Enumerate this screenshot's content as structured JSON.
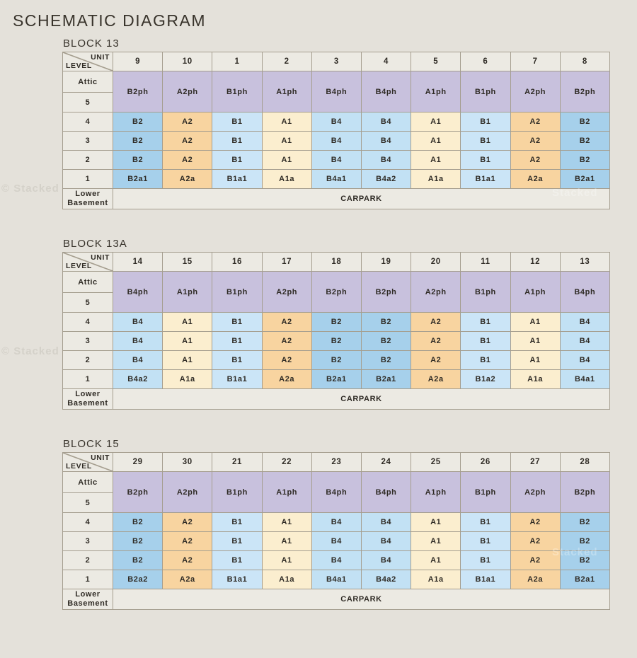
{
  "title": "SCHEMATIC DIAGRAM",
  "watermark_left": "© Stacked",
  "watermark_right": "Stacked",
  "corner": {
    "top": "UNIT",
    "bottom": "LEVEL"
  },
  "row_labels": {
    "attic": "Attic",
    "five": "5",
    "basement": "Lower\nBasement",
    "carpark": "CARPARK"
  },
  "unit_colors": {
    "PH": "#c8c1dd",
    "A1": "#fbeecf",
    "A2": "#f8d4a0",
    "B1": "#cbe5f7",
    "B2": "#a6d0eb",
    "B4": "#c2e1f4"
  },
  "border_color": "#a59e8f",
  "label_bg": "#eceae3",
  "page_bg": "#e4e1da",
  "blocks": [
    {
      "name": "BLOCK 13",
      "units": [
        "9",
        "10",
        "1",
        "2",
        "3",
        "4",
        "5",
        "6",
        "7",
        "8"
      ],
      "penthouse": [
        "B2ph",
        "A2ph",
        "B1ph",
        "A1ph",
        "B4ph",
        "B4ph",
        "A1ph",
        "B1ph",
        "A2ph",
        "B2ph"
      ],
      "levels": [
        {
          "label": "4",
          "cells": [
            "B2",
            "A2",
            "B1",
            "A1",
            "B4",
            "B4",
            "A1",
            "B1",
            "A2",
            "B2"
          ]
        },
        {
          "label": "3",
          "cells": [
            "B2",
            "A2",
            "B1",
            "A1",
            "B4",
            "B4",
            "A1",
            "B1",
            "A2",
            "B2"
          ]
        },
        {
          "label": "2",
          "cells": [
            "B2",
            "A2",
            "B1",
            "A1",
            "B4",
            "B4",
            "A1",
            "B1",
            "A2",
            "B2"
          ]
        },
        {
          "label": "1",
          "cells": [
            "B2a1",
            "A2a",
            "B1a1",
            "A1a",
            "B4a1",
            "B4a2",
            "A1a",
            "B1a1",
            "A2a",
            "B2a1"
          ]
        }
      ]
    },
    {
      "name": "BLOCK 13A",
      "units": [
        "14",
        "15",
        "16",
        "17",
        "18",
        "19",
        "20",
        "11",
        "12",
        "13"
      ],
      "penthouse": [
        "B4ph",
        "A1ph",
        "B1ph",
        "A2ph",
        "B2ph",
        "B2ph",
        "A2ph",
        "B1ph",
        "A1ph",
        "B4ph"
      ],
      "levels": [
        {
          "label": "4",
          "cells": [
            "B4",
            "A1",
            "B1",
            "A2",
            "B2",
            "B2",
            "A2",
            "B1",
            "A1",
            "B4"
          ]
        },
        {
          "label": "3",
          "cells": [
            "B4",
            "A1",
            "B1",
            "A2",
            "B2",
            "B2",
            "A2",
            "B1",
            "A1",
            "B4"
          ]
        },
        {
          "label": "2",
          "cells": [
            "B4",
            "A1",
            "B1",
            "A2",
            "B2",
            "B2",
            "A2",
            "B1",
            "A1",
            "B4"
          ]
        },
        {
          "label": "1",
          "cells": [
            "B4a2",
            "A1a",
            "B1a1",
            "A2a",
            "B2a1",
            "B2a1",
            "A2a",
            "B1a2",
            "A1a",
            "B4a1"
          ]
        }
      ]
    },
    {
      "name": "BLOCK 15",
      "units": [
        "29",
        "30",
        "21",
        "22",
        "23",
        "24",
        "25",
        "26",
        "27",
        "28"
      ],
      "penthouse": [
        "B2ph",
        "A2ph",
        "B1ph",
        "A1ph",
        "B4ph",
        "B4ph",
        "A1ph",
        "B1ph",
        "A2ph",
        "B2ph"
      ],
      "levels": [
        {
          "label": "4",
          "cells": [
            "B2",
            "A2",
            "B1",
            "A1",
            "B4",
            "B4",
            "A1",
            "B1",
            "A2",
            "B2"
          ]
        },
        {
          "label": "3",
          "cells": [
            "B2",
            "A2",
            "B1",
            "A1",
            "B4",
            "B4",
            "A1",
            "B1",
            "A2",
            "B2"
          ]
        },
        {
          "label": "2",
          "cells": [
            "B2",
            "A2",
            "B1",
            "A1",
            "B4",
            "B4",
            "A1",
            "B1",
            "A2",
            "B2"
          ]
        },
        {
          "label": "1",
          "cells": [
            "B2a2",
            "A2a",
            "B1a1",
            "A1a",
            "B4a1",
            "B4a2",
            "A1a",
            "B1a1",
            "A2a",
            "B2a1"
          ]
        }
      ]
    }
  ]
}
